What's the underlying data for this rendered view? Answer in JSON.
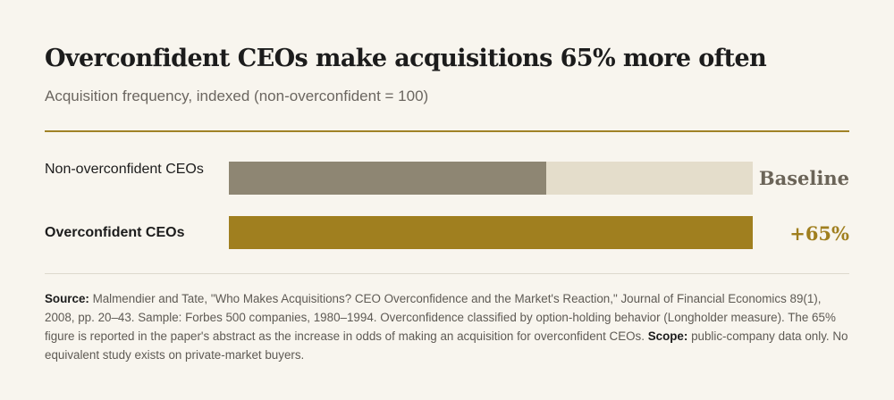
{
  "header": {
    "title": "Overconfident CEOs make acquisitions 65% more often",
    "subtitle": "Acquisition frequency, indexed (non-overconfident = 100)"
  },
  "chart_data": {
    "type": "bar",
    "orientation": "horizontal",
    "title": "Overconfident CEOs make acquisitions 65% more often",
    "subtitle": "Acquisition frequency, indexed (non-overconfident = 100)",
    "categories": [
      "Non-overconfident CEOs",
      "Overconfident CEOs"
    ],
    "values": [
      100,
      165
    ],
    "value_labels": [
      "Baseline",
      "+65%"
    ],
    "xlim": [
      0,
      165
    ],
    "grid": false,
    "legend": "none"
  },
  "footer": {
    "source_label": "Source:",
    "source_text": " Malmendier and Tate, \"Who Makes Acquisitions? CEO Overconfidence and the Market's Reaction,\" Journal of Financial Economics 89(1), 2008, pp. 20–43. Sample: Forbes 500 companies, 1980–1994. Overconfidence classified by option-holding behavior (Longholder measure). The 65% figure is reported in the paper's abstract as the increase in odds of making an acquisition for overconfident CEOs. ",
    "scope_label": "Scope:",
    "scope_text": " public-company data only. No equivalent study exists on private-market buyers."
  },
  "colors": {
    "background": "#f8f5ee",
    "accent": "#a07f1f",
    "baseline_bar": "#8e8673",
    "baseline_track": "#e4ddcb",
    "rule": "#a08226"
  }
}
